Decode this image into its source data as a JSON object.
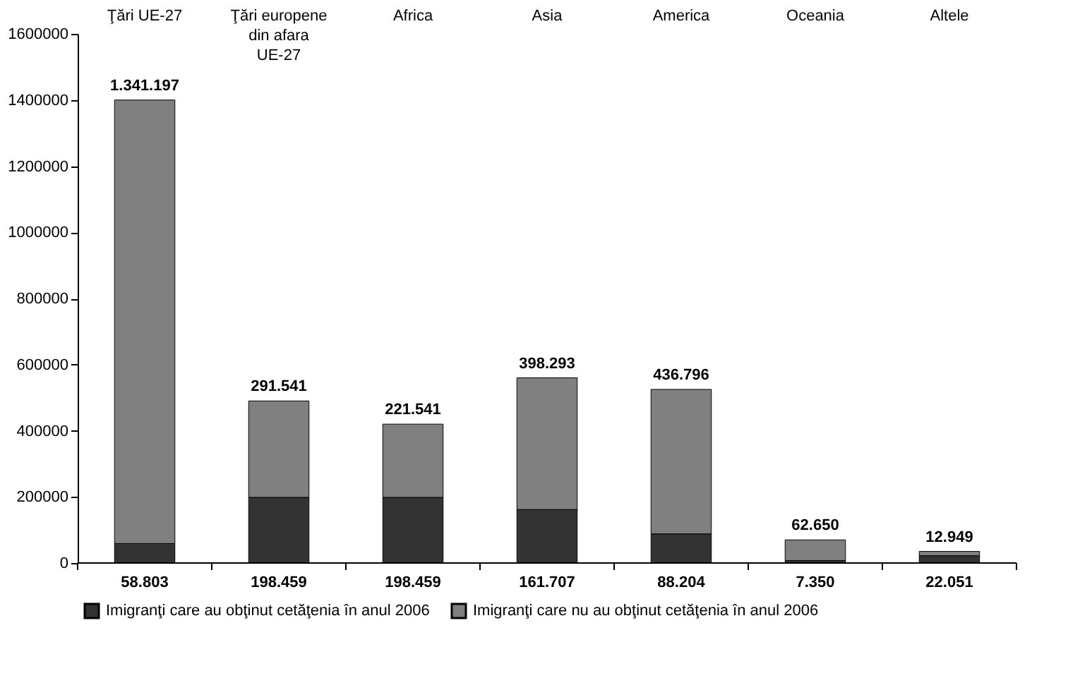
{
  "chart_data": {
    "type": "bar",
    "stacked": true,
    "categories": [
      "Ţări UE-27",
      "Ţări europene din afara UE-27",
      "Africa",
      "Asia",
      "America",
      "Oceania",
      "Altele"
    ],
    "series": [
      {
        "name": "Imigranţi care au obţinut cetăţenia în anul 2006",
        "color": "#333333",
        "values": [
          58803,
          198459,
          198459,
          161707,
          88204,
          7350,
          22051
        ],
        "value_labels": [
          "58.803",
          "198.459",
          "198.459",
          "161.707",
          "88.204",
          "7.350",
          "22.051"
        ]
      },
      {
        "name": "Imigranţi care nu au obţinut cetăţenia în anul 2006",
        "color": "#808080",
        "values": [
          1341197,
          291541,
          221541,
          398293,
          436796,
          62650,
          12949
        ],
        "value_labels": [
          "1.341.197",
          "291.541",
          "221.541",
          "398.293",
          "436.796",
          "62.650",
          "12.949"
        ]
      }
    ],
    "ylim": [
      0,
      1600000
    ],
    "yticks": [
      0,
      200000,
      400000,
      600000,
      800000,
      1000000,
      1200000,
      1400000,
      1600000
    ],
    "grid": false,
    "legend": "bottom"
  }
}
